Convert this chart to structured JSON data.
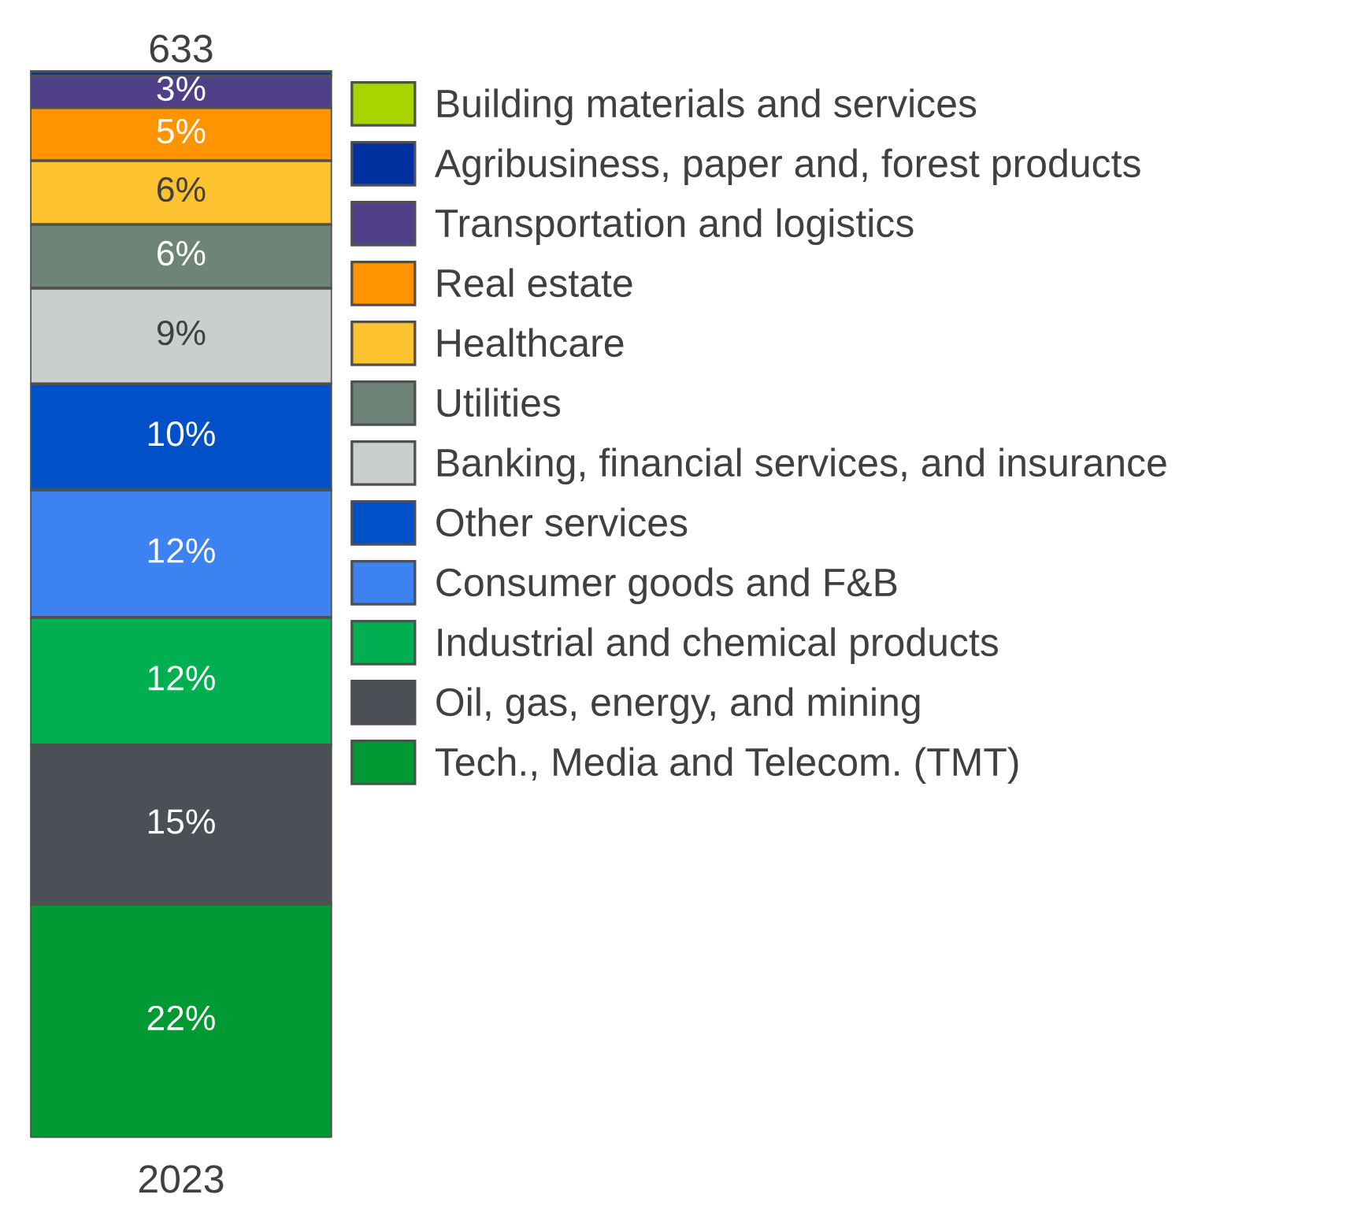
{
  "chart_data": {
    "type": "bar",
    "stacked": true,
    "categories": [
      "2023"
    ],
    "legend": "right",
    "grid": false,
    "tick_labels": "x",
    "annotations": [
      "633"
    ],
    "series": [
      {
        "name": "Tech., Media and Telecom. (TMT)",
        "color": "#009933",
        "values": [
          22
        ],
        "value_labels": [
          "22%"
        ]
      },
      {
        "name": "Oil, gas, energy, and mining",
        "color": "#4b5057",
        "values": [
          15
        ],
        "value_labels": [
          "15%"
        ]
      },
      {
        "name": "Industrial and chemical products",
        "color": "#00b050",
        "values": [
          12
        ],
        "value_labels": [
          "12%"
        ]
      },
      {
        "name": "Consumer goods and F&B",
        "color": "#3c82f0",
        "values": [
          12
        ],
        "value_labels": [
          "12%"
        ]
      },
      {
        "name": "Other services",
        "color": "#0050c8",
        "values": [
          10
        ],
        "value_labels": [
          "10%"
        ]
      },
      {
        "name": "Banking, financial services, and insurance",
        "color": "#c8cfcd",
        "values": [
          9
        ],
        "value_labels": [
          "9%"
        ]
      },
      {
        "name": "Utilities",
        "color": "#6e8479",
        "values": [
          6
        ],
        "value_labels": [
          "6%"
        ]
      },
      {
        "name": "Healthcare",
        "color": "#fdc230",
        "values": [
          6
        ],
        "value_labels": [
          "6%"
        ]
      },
      {
        "name": "Real estate",
        "color": "#ff9400",
        "values": [
          5
        ],
        "value_labels": [
          "5%"
        ]
      },
      {
        "name": "Transportation and logistics",
        "color": "#4e3f88",
        "values": [
          3
        ],
        "value_labels": [
          "3%"
        ]
      },
      {
        "name": "Agribusiness, paper and, forest products",
        "color": "#0030a0",
        "values": [
          0.4
        ],
        "value_labels": [
          null
        ]
      },
      {
        "name": "Building materials and services",
        "color": "#a8d400",
        "values": [
          0.1
        ],
        "value_labels": [
          null
        ]
      }
    ]
  }
}
